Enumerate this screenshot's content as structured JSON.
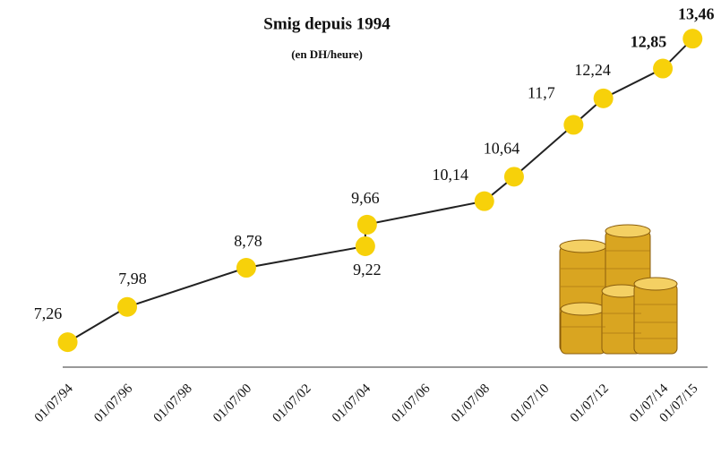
{
  "chart_data": {
    "type": "line",
    "title": "Smig depuis 1994",
    "subtitle": "(en DH/heure)",
    "x": [
      "1994-07-01",
      "1996-07-01",
      "2000-07-01",
      "2004-07-01",
      "2004-07-01",
      "2008-07-01",
      "2009-07-01",
      "2011-07-01",
      "2012-07-01",
      "2014-07-01",
      "2015-07-01"
    ],
    "series": [
      {
        "name": null,
        "color": "#222222",
        "marker_color": "#f7d10a",
        "values": [
          7.26,
          7.98,
          8.78,
          9.22,
          9.66,
          10.14,
          10.64,
          11.7,
          12.24,
          12.85,
          13.46
        ],
        "value_labels": [
          "7,26",
          "7,98",
          "8,78",
          "9,22",
          "9,66",
          "10,14",
          "10,64",
          "11,7",
          "12,24",
          "12,85",
          "13,46"
        ]
      }
    ],
    "xlim": [
      "1994-05-01",
      "2016-01-01"
    ],
    "xticks": [
      {
        "value": "1994-07-01",
        "label": "01/07/94"
      },
      {
        "value": "1996-07-01",
        "label": "01/07/96"
      },
      {
        "value": "1998-07-01",
        "label": "01/07/98"
      },
      {
        "value": "2000-07-01",
        "label": "01/07/00"
      },
      {
        "value": "2002-07-01",
        "label": "01/07/02"
      },
      {
        "value": "2004-07-01",
        "label": "01/07/04"
      },
      {
        "value": "2006-07-01",
        "label": "01/07/06"
      },
      {
        "value": "2008-07-01",
        "label": "01/07/08"
      },
      {
        "value": "2010-07-01",
        "label": "01/07/10"
      },
      {
        "value": "2012-07-01",
        "label": "01/07/12"
      },
      {
        "value": "2014-07-01",
        "label": "01/07/14"
      },
      {
        "value": "2015-07-01",
        "label": "01/07/15"
      }
    ],
    "ylim": [
      6.75,
      14.25
    ]
  }
}
